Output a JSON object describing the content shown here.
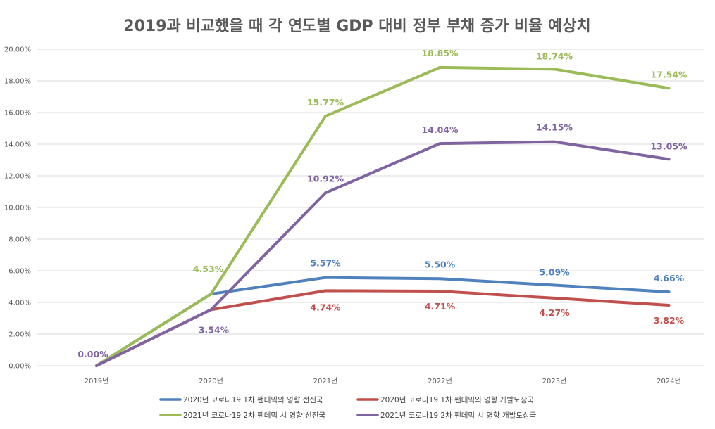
{
  "chart_data": {
    "type": "line",
    "title": "2019과 비교했을 때 각 연도별 GDP 대비 정부 부채 증가 비율 예상치",
    "x": [
      "2019년",
      "2020년",
      "2021년",
      "2022년",
      "2023년",
      "2024년"
    ],
    "ylim": [
      0,
      0.2
    ],
    "yticks": [
      "0.00%",
      "2.00%",
      "4.00%",
      "6.00%",
      "8.00%",
      "10.00%",
      "12.00%",
      "14.00%",
      "16.00%",
      "18.00%",
      "20.00%"
    ],
    "grid": true,
    "legend": "bottom",
    "series": [
      {
        "name": "2020년 코로나19 1차 팬데믹의 영향 선진국",
        "color": "#4F81BD",
        "values": [
          0.0,
          0.0453,
          0.0557,
          0.055,
          0.0509,
          0.0466
        ],
        "labels": [
          "",
          "",
          "5.57%",
          "5.50%",
          "5.09%",
          "4.66%"
        ]
      },
      {
        "name": "2020년 코로나19 1차 팬데믹의 영향 개발도상국",
        "color": "#C0504D",
        "values": [
          0.0,
          0.0354,
          0.0474,
          0.0471,
          0.0427,
          0.0382
        ],
        "labels": [
          "",
          "",
          "4.74%",
          "4.71%",
          "4.27%",
          "3.82%"
        ]
      },
      {
        "name": "2021년 코로나19 2차 팬데믹 시 영향 선진국",
        "color": "#9BBB59",
        "values": [
          0.0,
          0.0453,
          0.1577,
          0.1885,
          0.1874,
          0.1754
        ],
        "labels": [
          "",
          "4.53%",
          "15.77%",
          "18.85%",
          "18.74%",
          "17.54%"
        ]
      },
      {
        "name": "2021년 코로나19 2차 팬데믹 시 영향 개발도상국",
        "color": "#8064A2",
        "values": [
          0.0,
          0.0354,
          0.1092,
          0.1404,
          0.1415,
          0.1305
        ],
        "labels": [
          "0.00%",
          "3.54%",
          "10.92%",
          "14.04%",
          "14.15%",
          "13.05%"
        ]
      }
    ]
  }
}
